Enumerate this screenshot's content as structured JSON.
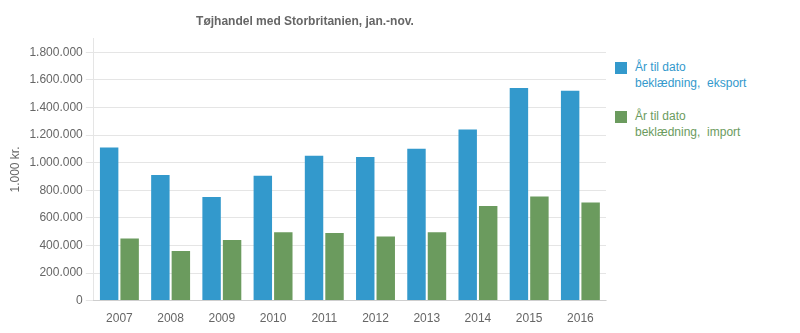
{
  "chart_data": {
    "type": "bar",
    "title": "Tøjhandel med Storbritanien, jan.-nov.",
    "ylabel": "1.000 kr.",
    "categories": [
      "2007",
      "2008",
      "2009",
      "2010",
      "2011",
      "2012",
      "2013",
      "2014",
      "2015",
      "2016"
    ],
    "series": [
      {
        "name": "År til dato\nbeklædning,  eksport",
        "color": "#3399CC",
        "values": [
          1110000,
          910000,
          750000,
          905000,
          1050000,
          1040000,
          1100000,
          1240000,
          1540000,
          1520000
        ]
      },
      {
        "name": "År til dato\nbeklædning,  import",
        "color": "#6B9B5E",
        "values": [
          450000,
          360000,
          440000,
          495000,
          490000,
          465000,
          495000,
          685000,
          755000,
          710000
        ]
      }
    ],
    "ylim": [
      0,
      1900000
    ],
    "yticks": [
      0,
      {
        "value": 200000,
        "label": "200.000"
      },
      {
        "value": 400000,
        "label": "400.000"
      },
      {
        "value": 600000,
        "label": "600.000"
      },
      {
        "value": 800000,
        "label": "800.000"
      },
      {
        "value": 1000000,
        "label": "1.000.000"
      },
      {
        "value": 1200000,
        "label": "1.200.000"
      },
      {
        "value": 1400000,
        "label": "1.400.000"
      },
      {
        "value": 1600000,
        "label": "1.600.000"
      },
      {
        "value": 1800000,
        "label": "1.800.000"
      }
    ],
    "grid": true,
    "legend": "right"
  }
}
